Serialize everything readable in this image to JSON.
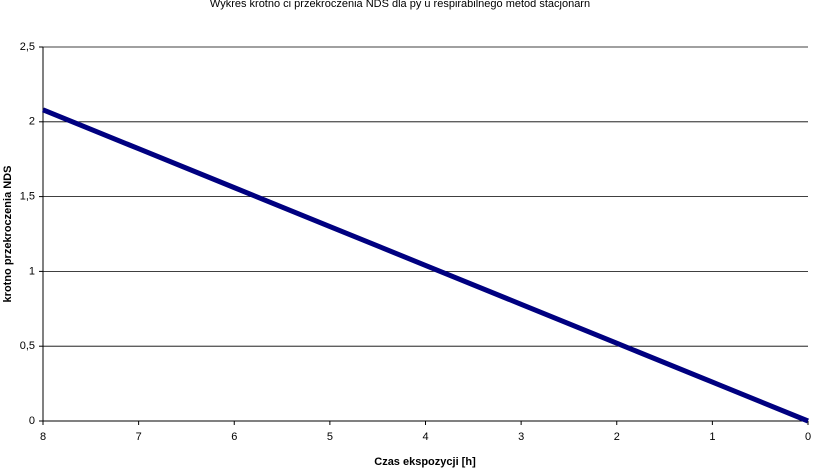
{
  "chart_data": {
    "type": "line",
    "title": "Wykres krotno  ci przekroczenia NDS dla py u respirabilnego metod   stacjonarn",
    "x_label": "Czas ekspozycji [h]",
    "y_label": "krotno    przekroczenia NDS",
    "x": [
      8,
      7,
      6,
      5,
      4,
      3,
      2,
      1,
      0
    ],
    "series": [
      {
        "color": "#000080",
        "values": [
          2.08,
          1.82,
          1.56,
          1.3,
          1.04,
          0.78,
          0.52,
          0.26,
          0
        ]
      }
    ],
    "xlim": [
      8,
      0
    ],
    "xticks": [
      8,
      7,
      6,
      5,
      4,
      3,
      2,
      1,
      0
    ],
    "ylim": [
      0,
      2.5
    ],
    "yticks": [
      0,
      {
        "value": 0.5,
        "label": "0,5"
      },
      1,
      {
        "value": 1.5,
        "label": "1,5"
      },
      2,
      {
        "value": 2.5,
        "label": "2,5"
      }
    ],
    "grid": true
  }
}
